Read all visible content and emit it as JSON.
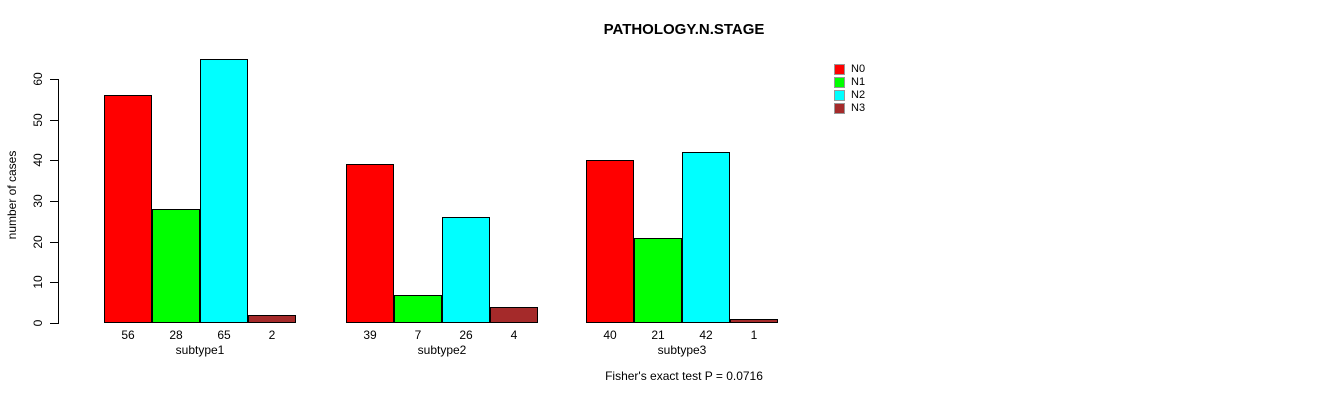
{
  "chart_data": {
    "type": "bar",
    "title": "PATHOLOGY.N.STAGE",
    "xlabel": "",
    "ylabel": "number of cases",
    "categories": [
      "subtype1",
      "subtype2",
      "subtype3"
    ],
    "series": [
      {
        "name": "N0",
        "color": "#ff0000",
        "values": [
          56,
          39,
          40
        ]
      },
      {
        "name": "N1",
        "color": "#00ff00",
        "values": [
          28,
          7,
          21
        ]
      },
      {
        "name": "N2",
        "color": "#00ffff",
        "values": [
          65,
          26,
          42
        ]
      },
      {
        "name": "N3",
        "color": "#a52a2a",
        "values": [
          2,
          4,
          1
        ]
      }
    ],
    "yticks": [
      0,
      10,
      20,
      30,
      40,
      50,
      60
    ],
    "ylim": [
      0,
      65
    ],
    "grid": false,
    "legend_position": "top-right",
    "bar_labels": true,
    "annotation": "Fisher's exact test P = 0.0716"
  }
}
